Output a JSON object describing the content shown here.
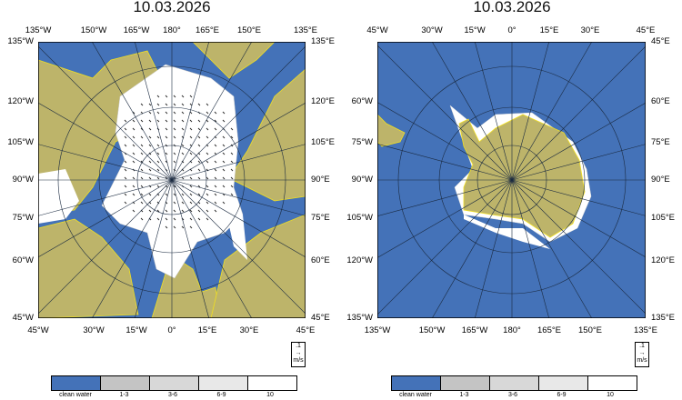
{
  "maps": [
    {
      "title": "10.03.2026",
      "hemisphere": "north",
      "top_labels": [
        "135°W",
        "150°W",
        "165°W",
        "180°",
        "165°E",
        "150°E",
        "135°E"
      ],
      "bottom_labels": [
        "45°W",
        "30°W",
        "15°W",
        "0°",
        "15°E",
        "30°E",
        "45°E"
      ],
      "left_labels": [
        "135°W",
        "120°W",
        "105°W",
        "90°W",
        "75°W",
        "60°W",
        "45°W"
      ],
      "right_labels": [
        "135°E",
        "120°E",
        "105°E",
        "90°E",
        "75°E",
        "60°E",
        "45°E"
      ]
    },
    {
      "title": "10.03.2026",
      "hemisphere": "south",
      "top_labels": [
        "45°W",
        "30°W",
        "15°W",
        "0°",
        "15°E",
        "30°E",
        "45°E"
      ],
      "bottom_labels": [
        "135°W",
        "150°W",
        "165°W",
        "180°",
        "165°E",
        "150°E",
        "135°E"
      ],
      "left_labels": [
        "",
        "60°W",
        "75°W",
        "90°W",
        "105°W",
        "120°W",
        "135°W"
      ],
      "right_labels": [
        "45°E",
        "60°E",
        "75°E",
        "90°E",
        "105°E",
        "120°E",
        "135°E"
      ]
    }
  ],
  "vector_key": {
    "value": ".1",
    "unit": "m/s"
  },
  "legend": [
    {
      "label": "clean water",
      "color": "#4472b8"
    },
    {
      "label": "1-3",
      "color": "#c4c4c4"
    },
    {
      "label": "3-6",
      "color": "#d8d8d8"
    },
    {
      "label": "6-9",
      "color": "#e8e8e8"
    },
    {
      "label": "10",
      "color": "#ffffff"
    }
  ],
  "colors": {
    "ocean": "#4472b8",
    "land": "#bdb46a",
    "coast": "#f2e020",
    "grid": "#1a2a40"
  }
}
